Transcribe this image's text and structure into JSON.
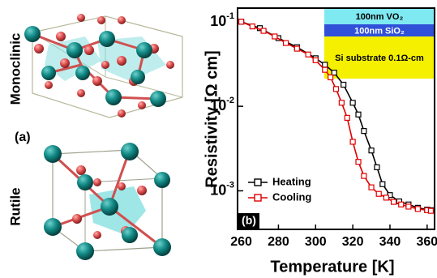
{
  "panel_a": {
    "label": "(a)",
    "structures": [
      "Monoclinic",
      "Rutile"
    ]
  },
  "chart_data": {
    "type": "line",
    "panel_label": "(b)",
    "x_label": "Temperature [K]",
    "y_label": "Resistivity [Ω cm]",
    "xlim": [
      258,
      364
    ],
    "xticks": [
      260,
      280,
      300,
      320,
      340,
      360
    ],
    "ylim": [
      0.00035,
      0.145
    ],
    "y_log": true,
    "yticks": [
      {
        "value": 0.1,
        "label": "10",
        "exponent": "-1"
      },
      {
        "value": 0.01,
        "label": "10",
        "exponent": "-2"
      },
      {
        "value": 0.001,
        "label": "10",
        "exponent": "-3"
      }
    ],
    "legend_position": "lower left",
    "inset": [
      {
        "text": "100nm VO₂",
        "color": "#7fe9f2"
      },
      {
        "text": "100nm SiO₂",
        "color": "#3050d8"
      },
      {
        "text": "Si substrate 0.1Ω-cm",
        "color": "#f4f000"
      }
    ],
    "series": [
      {
        "name": "Heating",
        "color": "#000000",
        "x": [
          260,
          270,
          280,
          290,
          300,
          305,
          310,
          315,
          320,
          323,
          326,
          330,
          333,
          336,
          340,
          345,
          350,
          355,
          360,
          362
        ],
        "values": [
          0.1,
          0.084,
          0.064,
          0.05,
          0.037,
          0.031,
          0.025,
          0.018,
          0.011,
          0.008,
          0.0051,
          0.003,
          0.0019,
          0.0012,
          0.00089,
          0.00075,
          0.00069,
          0.00063,
          0.0006,
          0.00059
        ]
      },
      {
        "name": "Cooling",
        "color": "#e00000",
        "x": [
          260,
          266,
          272,
          278,
          284,
          290,
          296,
          300,
          305,
          308,
          311,
          314,
          317,
          320,
          323,
          326,
          330,
          334,
          338,
          342,
          346,
          350,
          355,
          360,
          362
        ],
        "values": [
          0.1,
          0.088,
          0.078,
          0.067,
          0.056,
          0.048,
          0.041,
          0.035,
          0.027,
          0.022,
          0.016,
          0.011,
          0.0073,
          0.0038,
          0.0022,
          0.0015,
          0.0011,
          0.00092,
          0.00083,
          0.00074,
          0.00069,
          0.00065,
          0.00061,
          0.00059,
          0.00058
        ]
      }
    ]
  }
}
